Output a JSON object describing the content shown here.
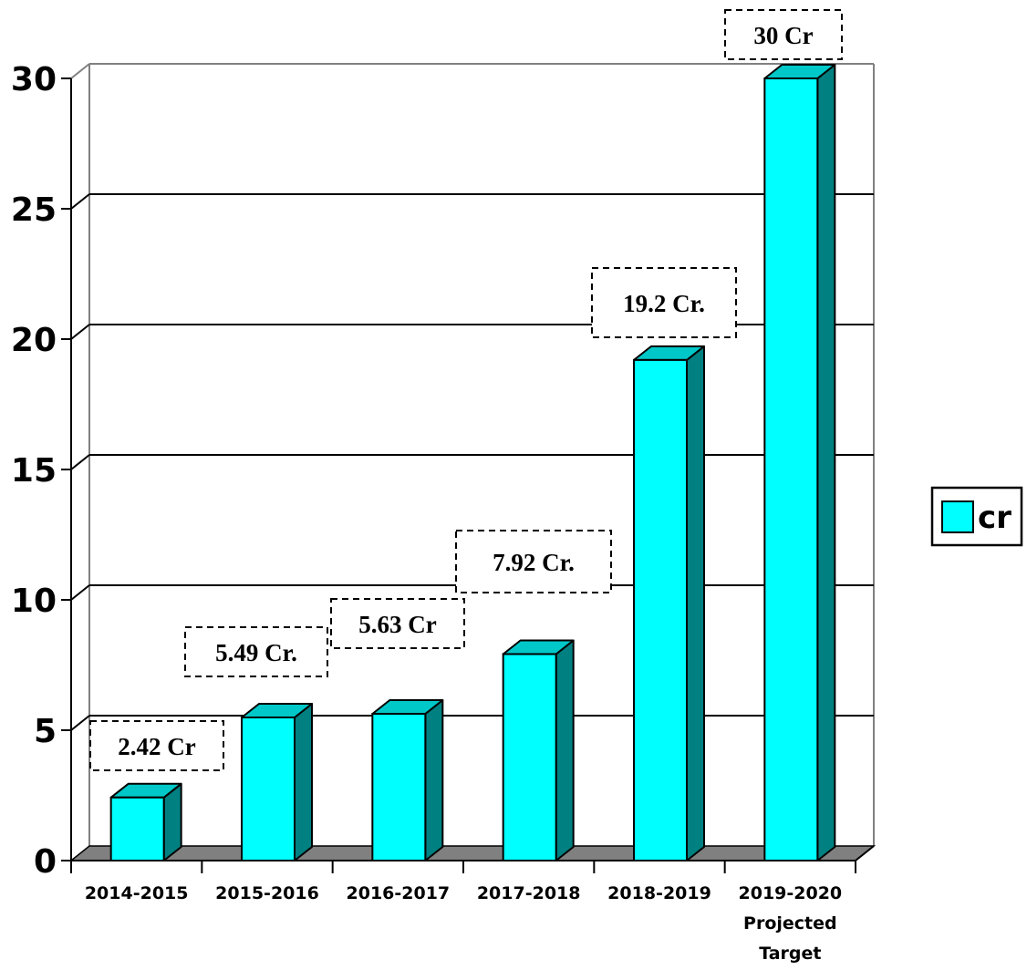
{
  "chart_data": {
    "type": "bar",
    "categories": [
      [
        "2014-2015"
      ],
      [
        "2015-2016"
      ],
      [
        "2016-2017"
      ],
      [
        "2017-2018"
      ],
      [
        "2018-2019"
      ],
      [
        "2019-2020",
        "Projected",
        "Target"
      ]
    ],
    "series": [
      {
        "name": "cr",
        "values": [
          2.42,
          5.49,
          5.63,
          7.92,
          19.2,
          30
        ],
        "data_labels": [
          "2.42 Cr",
          "5.49 Cr.",
          "5.63 Cr",
          "7.92 Cr.",
          "19.2 Cr.",
          "30 Cr"
        ]
      }
    ],
    "yticks": [
      0,
      5,
      10,
      15,
      20,
      25,
      30
    ],
    "ylim": [
      0,
      30
    ],
    "grid": true,
    "legend_position": "right",
    "style": "3d-column"
  },
  "colors": {
    "bar_front": "#00FFFF",
    "bar_top": "#00C8C8",
    "bar_side": "#008080",
    "floor": "#808080",
    "wall_edge": "#808080",
    "gridline": "#000000"
  }
}
